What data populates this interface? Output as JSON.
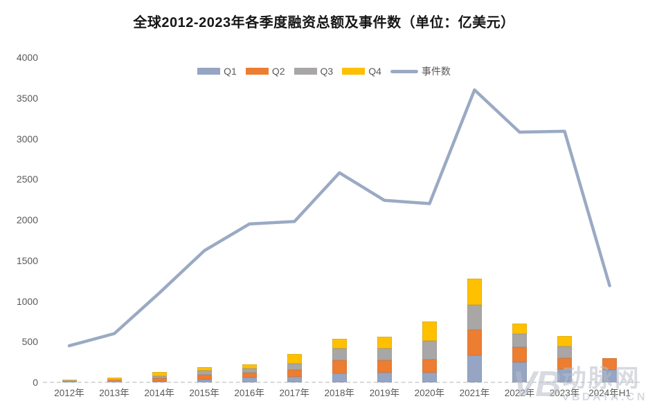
{
  "title": "全球2012-2023年各季度融资总额及事件数（单位：亿美元）",
  "watermark": {
    "logo": "VB",
    "name": "动脉网",
    "site": "VBDATA.CN"
  },
  "colors": {
    "q1": "#95A5C3",
    "q2": "#ED7D31",
    "q3": "#A9A6A6",
    "q4": "#FFC000",
    "events_line": "#9BAAC3",
    "axis_text": "#595959",
    "baseline": "#D9D9D9"
  },
  "chart_data": {
    "type": "bar",
    "subtype": "stacked bars with overlaid line",
    "title": "全球2012-2023年各季度融资总额及事件数（单位：亿美元）",
    "categories": [
      "2012年",
      "2013年",
      "2014年",
      "2015年",
      "2016年",
      "2017年",
      "2018年",
      "2019年",
      "2020年",
      "2021年",
      "2022年",
      "2023年",
      "2024年H1"
    ],
    "series": [
      {
        "name": "Q1",
        "type": "bar",
        "color": "#95A5C3",
        "values": [
          5,
          5,
          10,
          30,
          60,
          70,
          110,
          120,
          120,
          330,
          245,
          165,
          150
        ]
      },
      {
        "name": "Q2",
        "type": "bar",
        "color": "#ED7D31",
        "values": [
          10,
          20,
          37,
          65,
          62,
          80,
          160,
          150,
          165,
          320,
          190,
          130,
          150
        ]
      },
      {
        "name": "Q3",
        "type": "bar",
        "color": "#A9A6A6",
        "values": [
          12,
          18,
          28,
          50,
          48,
          83,
          150,
          150,
          230,
          300,
          165,
          150,
          0
        ]
      },
      {
        "name": "Q4",
        "type": "bar",
        "color": "#FFC000",
        "values": [
          8,
          17,
          50,
          45,
          55,
          113,
          115,
          145,
          230,
          330,
          120,
          125,
          0
        ]
      },
      {
        "name": "事件数",
        "type": "line",
        "color": "#9BAAC3",
        "values": [
          450,
          600,
          1100,
          1620,
          1950,
          1980,
          2580,
          2240,
          2200,
          3600,
          3080,
          3090,
          1190
        ]
      }
    ],
    "totals_stacked": [
      35,
      60,
      125,
      190,
      225,
      346,
      535,
      565,
      745,
      1280,
      720,
      570,
      300
    ],
    "xlabel": "",
    "ylabel": "",
    "ylim": [
      0,
      4000
    ],
    "y_ticks": [
      0,
      500,
      1000,
      1500,
      2000,
      2500,
      3000,
      3500,
      4000
    ],
    "grid": false,
    "legend_position": "top",
    "legend_order": [
      "Q1",
      "Q2",
      "Q3",
      "Q4",
      "事件数"
    ]
  }
}
